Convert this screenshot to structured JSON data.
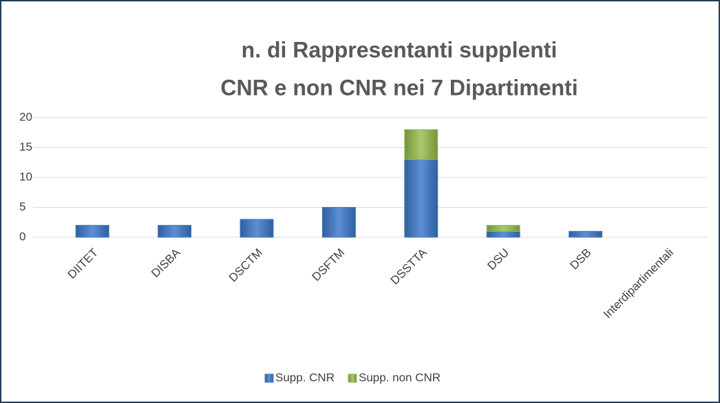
{
  "chart_data": {
    "type": "stacked_bar",
    "title": [
      "n. di Rappresentanti supplenti",
      "CNR e non CNR nei 7 Dipartimenti"
    ],
    "categories": [
      "DIITET",
      "DISBA",
      "DSCTM",
      "DSFTM",
      "DSSTTA",
      "DSU",
      "DSB",
      "Interdipartimentali"
    ],
    "series": [
      {
        "name": "Supp. CNR",
        "color": "#4a7ebb",
        "values": [
          2,
          2,
          3,
          5,
          13,
          1,
          1,
          0
        ]
      },
      {
        "name": "Supp. non CNR",
        "color": "#9bbb59",
        "values": [
          0,
          0,
          0,
          0,
          5,
          1,
          0,
          0
        ]
      }
    ],
    "ylim": [
      0,
      20
    ],
    "yticks": [
      0,
      5,
      10,
      15,
      20
    ],
    "grid": true,
    "legend": "bottom"
  }
}
